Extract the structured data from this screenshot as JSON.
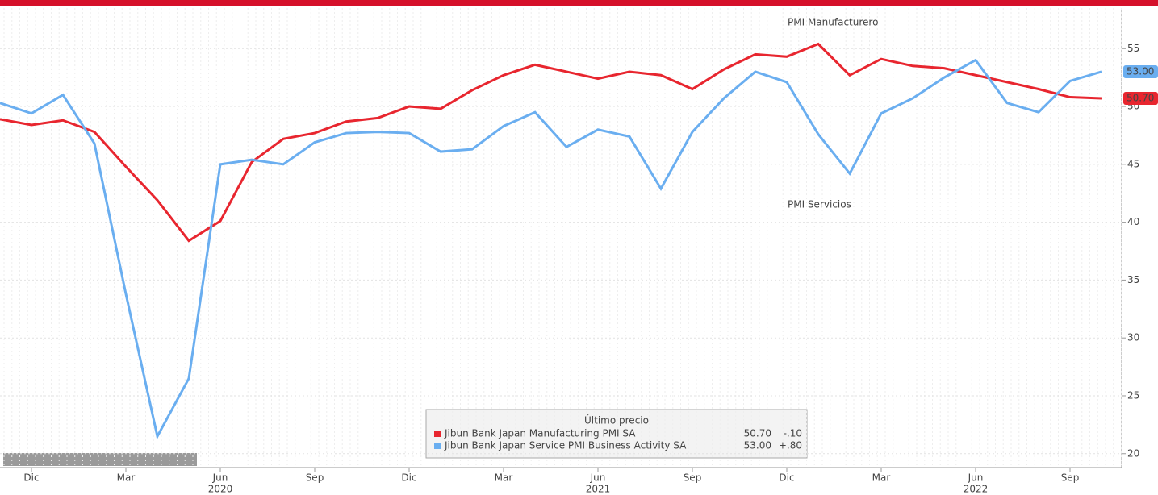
{
  "chart_data": {
    "type": "line",
    "categories": [
      null,
      "Dic",
      null,
      null,
      "Mar",
      null,
      null,
      "Jun",
      null,
      null,
      "Sep",
      null,
      null,
      "Dic",
      null,
      null,
      "Mar",
      null,
      null,
      "Jun",
      null,
      null,
      "Sep",
      null,
      null,
      "Dic",
      null,
      null,
      "Mar",
      null,
      null,
      "Jun",
      null,
      null,
      "Sep",
      null
    ],
    "category_years": [
      null,
      null,
      null,
      null,
      null,
      null,
      null,
      "2020",
      null,
      null,
      null,
      null,
      null,
      null,
      null,
      null,
      null,
      null,
      null,
      "2021",
      null,
      null,
      null,
      null,
      null,
      null,
      null,
      null,
      null,
      null,
      null,
      "2022",
      null,
      null,
      null,
      null
    ],
    "series": [
      {
        "name": "Jibun Bank Japan Manufacturing PMI SA",
        "color": "#e8262f",
        "values": [
          48.9,
          48.4,
          48.8,
          47.8,
          44.8,
          41.9,
          38.4,
          40.1,
          45.2,
          47.2,
          47.7,
          48.7,
          49.0,
          50.0,
          49.8,
          51.4,
          52.7,
          53.6,
          53.0,
          52.4,
          53.0,
          52.7,
          51.5,
          53.2,
          54.5,
          54.3,
          55.4,
          52.7,
          54.1,
          53.5,
          53.3,
          52.7,
          52.1,
          51.5,
          50.8,
          50.7
        ],
        "last": {
          "value": 50.7,
          "label": "50.70"
        },
        "change": {
          "value": -0.1,
          "label": "-.10"
        }
      },
      {
        "name": "Jibun Bank Japan Service PMI Business Activity SA",
        "color": "#6aaef0",
        "values": [
          50.3,
          49.4,
          51.0,
          46.8,
          33.8,
          21.5,
          26.5,
          45.0,
          45.4,
          45.0,
          46.9,
          47.7,
          47.8,
          47.7,
          46.1,
          46.3,
          48.3,
          49.5,
          46.5,
          48.0,
          47.4,
          42.9,
          47.8,
          50.7,
          53.0,
          52.1,
          47.6,
          44.2,
          49.4,
          50.7,
          52.5,
          54.0,
          50.3,
          49.5,
          52.2,
          53.0
        ],
        "last": {
          "value": 53.0,
          "label": "53.00"
        },
        "change": {
          "value": 0.8,
          "label": "+.80"
        }
      }
    ],
    "annotations": [
      "PMI Manufacturero",
      "PMI Servicios"
    ],
    "legend_title": "Último precio",
    "ylim": [
      18.8,
      58.5
    ],
    "yticks": [
      20,
      25,
      30,
      35,
      40,
      45,
      50,
      55
    ],
    "grid": true
  }
}
